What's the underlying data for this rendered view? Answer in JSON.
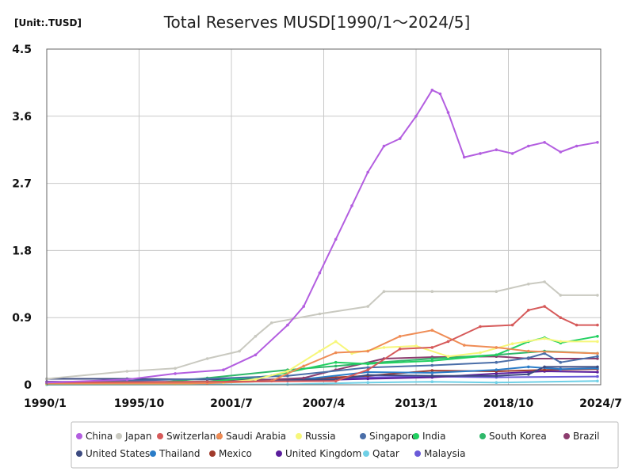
{
  "chart_data": {
    "type": "line",
    "title": "Total Reserves MUSD[1990/1～2024/5]",
    "unit_label": "[Unit:.TUSD]",
    "xlabel": "",
    "ylabel": "",
    "x_ticks": [
      "1990/1",
      "1995/10",
      "2001/7",
      "2007/4",
      "2013/1",
      "2018/10",
      "2024/7"
    ],
    "y_ticks": [
      "0",
      "0.9",
      "1.8",
      "2.7",
      "3.6",
      "4.5"
    ],
    "ylim": [
      0,
      4.5
    ],
    "xlim": [
      1990.0,
      2024.5
    ],
    "grid": true,
    "legend_position": "bottom",
    "series": [
      {
        "name": "China",
        "color": "#b35ee0",
        "points": [
          [
            1990,
            0.03
          ],
          [
            1995,
            0.07
          ],
          [
            1998,
            0.15
          ],
          [
            2001,
            0.2
          ],
          [
            2003,
            0.4
          ],
          [
            2005,
            0.8
          ],
          [
            2006,
            1.05
          ],
          [
            2007,
            1.5
          ],
          [
            2008,
            1.95
          ],
          [
            2009,
            2.4
          ],
          [
            2010,
            2.85
          ],
          [
            2011,
            3.2
          ],
          [
            2012,
            3.3
          ],
          [
            2013,
            3.6
          ],
          [
            2014,
            3.95
          ],
          [
            2014.5,
            3.9
          ],
          [
            2015,
            3.65
          ],
          [
            2016,
            3.05
          ],
          [
            2017,
            3.1
          ],
          [
            2018,
            3.15
          ],
          [
            2019,
            3.1
          ],
          [
            2020,
            3.2
          ],
          [
            2021,
            3.25
          ],
          [
            2022,
            3.12
          ],
          [
            2023,
            3.2
          ],
          [
            2024.3,
            3.25
          ]
        ]
      },
      {
        "name": "Japan",
        "color": "#c9c9c0",
        "points": [
          [
            1990,
            0.08
          ],
          [
            1995,
            0.18
          ],
          [
            1998,
            0.22
          ],
          [
            2000,
            0.35
          ],
          [
            2002,
            0.45
          ],
          [
            2003,
            0.65
          ],
          [
            2004,
            0.83
          ],
          [
            2007,
            0.95
          ],
          [
            2010,
            1.05
          ],
          [
            2011,
            1.25
          ],
          [
            2014,
            1.25
          ],
          [
            2018,
            1.25
          ],
          [
            2020,
            1.35
          ],
          [
            2021,
            1.38
          ],
          [
            2022,
            1.2
          ],
          [
            2024.3,
            1.2
          ]
        ]
      },
      {
        "name": "Switzerland",
        "color": "#d65a5a",
        "points": [
          [
            1990,
            0.03
          ],
          [
            2000,
            0.04
          ],
          [
            2008,
            0.05
          ],
          [
            2010,
            0.2
          ],
          [
            2012,
            0.48
          ],
          [
            2014,
            0.5
          ],
          [
            2015,
            0.58
          ],
          [
            2017,
            0.78
          ],
          [
            2019,
            0.8
          ],
          [
            2020,
            1.0
          ],
          [
            2021,
            1.05
          ],
          [
            2022,
            0.9
          ],
          [
            2023,
            0.8
          ],
          [
            2024.3,
            0.8
          ]
        ]
      },
      {
        "name": "Saudi Arabia",
        "color": "#ef8c55",
        "points": [
          [
            1990,
            0.02
          ],
          [
            2000,
            0.02
          ],
          [
            2004,
            0.05
          ],
          [
            2006,
            0.25
          ],
          [
            2008,
            0.43
          ],
          [
            2010,
            0.45
          ],
          [
            2012,
            0.65
          ],
          [
            2014,
            0.73
          ],
          [
            2016,
            0.53
          ],
          [
            2018,
            0.5
          ],
          [
            2020,
            0.45
          ],
          [
            2024.3,
            0.42
          ]
        ]
      },
      {
        "name": "Russia",
        "color": "#f7f77a",
        "points": [
          [
            1990,
            0.01
          ],
          [
            1998,
            0.01
          ],
          [
            2001,
            0.03
          ],
          [
            2003,
            0.07
          ],
          [
            2005,
            0.18
          ],
          [
            2007,
            0.45
          ],
          [
            2008,
            0.58
          ],
          [
            2009,
            0.42
          ],
          [
            2011,
            0.5
          ],
          [
            2013,
            0.52
          ],
          [
            2015,
            0.38
          ],
          [
            2017,
            0.43
          ],
          [
            2019,
            0.55
          ],
          [
            2021,
            0.62
          ],
          [
            2022,
            0.58
          ],
          [
            2024.3,
            0.58
          ]
        ]
      },
      {
        "name": "Singapore",
        "color": "#4a6ea8",
        "points": [
          [
            1990,
            0.03
          ],
          [
            2000,
            0.08
          ],
          [
            2005,
            0.12
          ],
          [
            2010,
            0.23
          ],
          [
            2014,
            0.26
          ],
          [
            2018,
            0.3
          ],
          [
            2020,
            0.36
          ],
          [
            2021,
            0.42
          ],
          [
            2022,
            0.3
          ],
          [
            2024.3,
            0.38
          ]
        ]
      },
      {
        "name": "India",
        "color": "#20d060",
        "points": [
          [
            1990,
            0.01
          ],
          [
            2000,
            0.04
          ],
          [
            2004,
            0.12
          ],
          [
            2008,
            0.3
          ],
          [
            2010,
            0.28
          ],
          [
            2014,
            0.32
          ],
          [
            2018,
            0.4
          ],
          [
            2020,
            0.58
          ],
          [
            2021,
            0.63
          ],
          [
            2022,
            0.56
          ],
          [
            2024.3,
            0.65
          ]
        ]
      },
      {
        "name": "South Korea",
        "color": "#2fb86a",
        "points": [
          [
            1990,
            0.02
          ],
          [
            1997,
            0.03
          ],
          [
            2000,
            0.09
          ],
          [
            2005,
            0.2
          ],
          [
            2008,
            0.25
          ],
          [
            2010,
            0.29
          ],
          [
            2014,
            0.35
          ],
          [
            2018,
            0.4
          ],
          [
            2021,
            0.45
          ],
          [
            2024.3,
            0.42
          ]
        ]
      },
      {
        "name": "Brazil",
        "color": "#8c3c6e",
        "points": [
          [
            1990,
            0.01
          ],
          [
            2000,
            0.03
          ],
          [
            2006,
            0.09
          ],
          [
            2008,
            0.2
          ],
          [
            2011,
            0.35
          ],
          [
            2014,
            0.37
          ],
          [
            2018,
            0.38
          ],
          [
            2020,
            0.35
          ],
          [
            2024.3,
            0.35
          ]
        ]
      },
      {
        "name": "United States",
        "color": "#3c4a80",
        "points": [
          [
            1990,
            0.08
          ],
          [
            1995,
            0.08
          ],
          [
            2000,
            0.07
          ],
          [
            2005,
            0.07
          ],
          [
            2008,
            0.07
          ],
          [
            2010,
            0.13
          ],
          [
            2014,
            0.12
          ],
          [
            2018,
            0.12
          ],
          [
            2020,
            0.14
          ],
          [
            2021,
            0.24
          ],
          [
            2024.3,
            0.24
          ]
        ]
      },
      {
        "name": "Thailand",
        "color": "#2a7cc8",
        "points": [
          [
            1990,
            0.01
          ],
          [
            2000,
            0.03
          ],
          [
            2005,
            0.05
          ],
          [
            2010,
            0.17
          ],
          [
            2014,
            0.16
          ],
          [
            2018,
            0.2
          ],
          [
            2020,
            0.24
          ],
          [
            2022,
            0.21
          ],
          [
            2024.3,
            0.22
          ]
        ]
      },
      {
        "name": "Mexico",
        "color": "#a03a2a",
        "points": [
          [
            1990,
            0.01
          ],
          [
            2000,
            0.04
          ],
          [
            2005,
            0.07
          ],
          [
            2010,
            0.12
          ],
          [
            2014,
            0.19
          ],
          [
            2018,
            0.18
          ],
          [
            2021,
            0.2
          ],
          [
            2024.3,
            0.21
          ]
        ]
      },
      {
        "name": "United Kingdom",
        "color": "#5a1d9c",
        "points": [
          [
            1990,
            0.04
          ],
          [
            2000,
            0.04
          ],
          [
            2005,
            0.05
          ],
          [
            2010,
            0.08
          ],
          [
            2014,
            0.1
          ],
          [
            2018,
            0.15
          ],
          [
            2021,
            0.18
          ],
          [
            2024.3,
            0.17
          ]
        ]
      },
      {
        "name": "Qatar",
        "color": "#6fd0e6",
        "points": [
          [
            1990,
            0.0
          ],
          [
            2005,
            0.005
          ],
          [
            2010,
            0.03
          ],
          [
            2014,
            0.04
          ],
          [
            2018,
            0.03
          ],
          [
            2024.3,
            0.05
          ]
        ]
      },
      {
        "name": "Malaysia",
        "color": "#6a5ad8",
        "points": [
          [
            1990,
            0.01
          ],
          [
            1996,
            0.03
          ],
          [
            2000,
            0.03
          ],
          [
            2005,
            0.07
          ],
          [
            2010,
            0.1
          ],
          [
            2014,
            0.11
          ],
          [
            2018,
            0.1
          ],
          [
            2024.3,
            0.11
          ]
        ]
      }
    ]
  }
}
